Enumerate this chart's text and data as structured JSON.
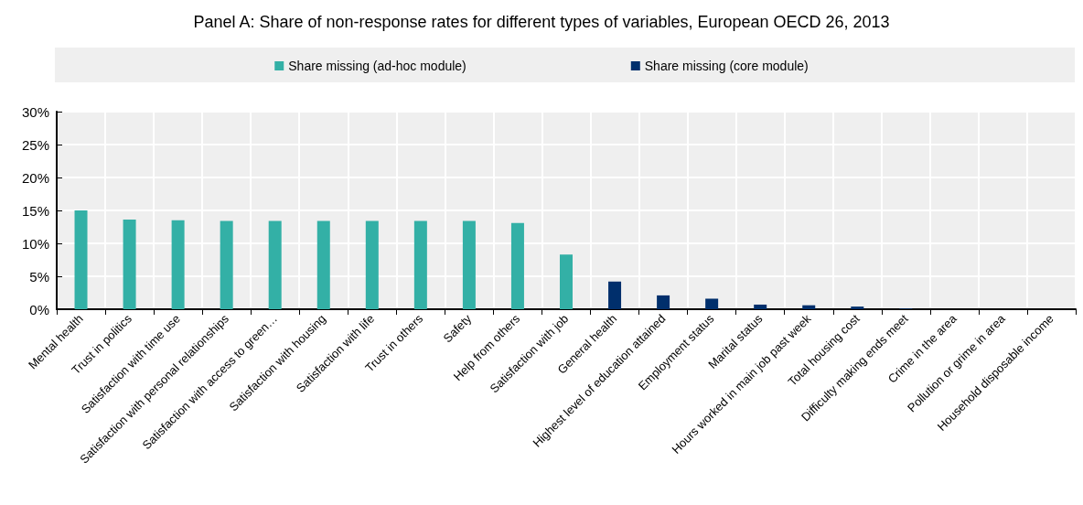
{
  "chart_data": {
    "type": "bar",
    "title": "Panel A: Share of non-response rates for different types of variables, European OECD 26, 2013",
    "categories": [
      "Mental health",
      "Trust in politics",
      "Satisfaction with time use",
      "Satisfaction with personal relationships",
      "Satisfaction with access to green…",
      "Satisfaction with housing",
      "Satisfaction with life",
      "Trust in others",
      "Safety",
      "Help from others",
      "Satisfaction with job",
      "General health",
      "Highest level of education attained",
      "Employment status",
      "Marital status",
      "Hours worked in main job past week",
      "Total housing cost",
      "Difficulty making ends meet",
      "Crime in the area",
      "Pollution or grime in area",
      "Household disposable income"
    ],
    "series": [
      {
        "name": "Share missing (ad-hoc module)",
        "color": "#33b0a6",
        "values": [
          15,
          13.6,
          13.5,
          13.4,
          13.4,
          13.4,
          13.4,
          13.4,
          13.4,
          13.1,
          8.3,
          null,
          null,
          null,
          null,
          null,
          null,
          null,
          null,
          null,
          null
        ]
      },
      {
        "name": "Share missing (core module)",
        "color": "#002f6c",
        "values": [
          null,
          null,
          null,
          null,
          null,
          null,
          null,
          null,
          null,
          null,
          null,
          4.2,
          2.1,
          1.6,
          0.7,
          0.6,
          0.4,
          0.1,
          0,
          0,
          0
        ]
      }
    ],
    "ylim": [
      0,
      30
    ],
    "yticks": [
      {
        "value": 0,
        "label": "0%"
      },
      {
        "value": 5,
        "label": "5%"
      },
      {
        "value": 10,
        "label": "10%"
      },
      {
        "value": 15,
        "label": "15%"
      },
      {
        "value": 20,
        "label": "20%"
      },
      {
        "value": 25,
        "label": "25%"
      },
      {
        "value": 30,
        "label": "30%"
      }
    ],
    "grid": true,
    "legend": "top"
  }
}
